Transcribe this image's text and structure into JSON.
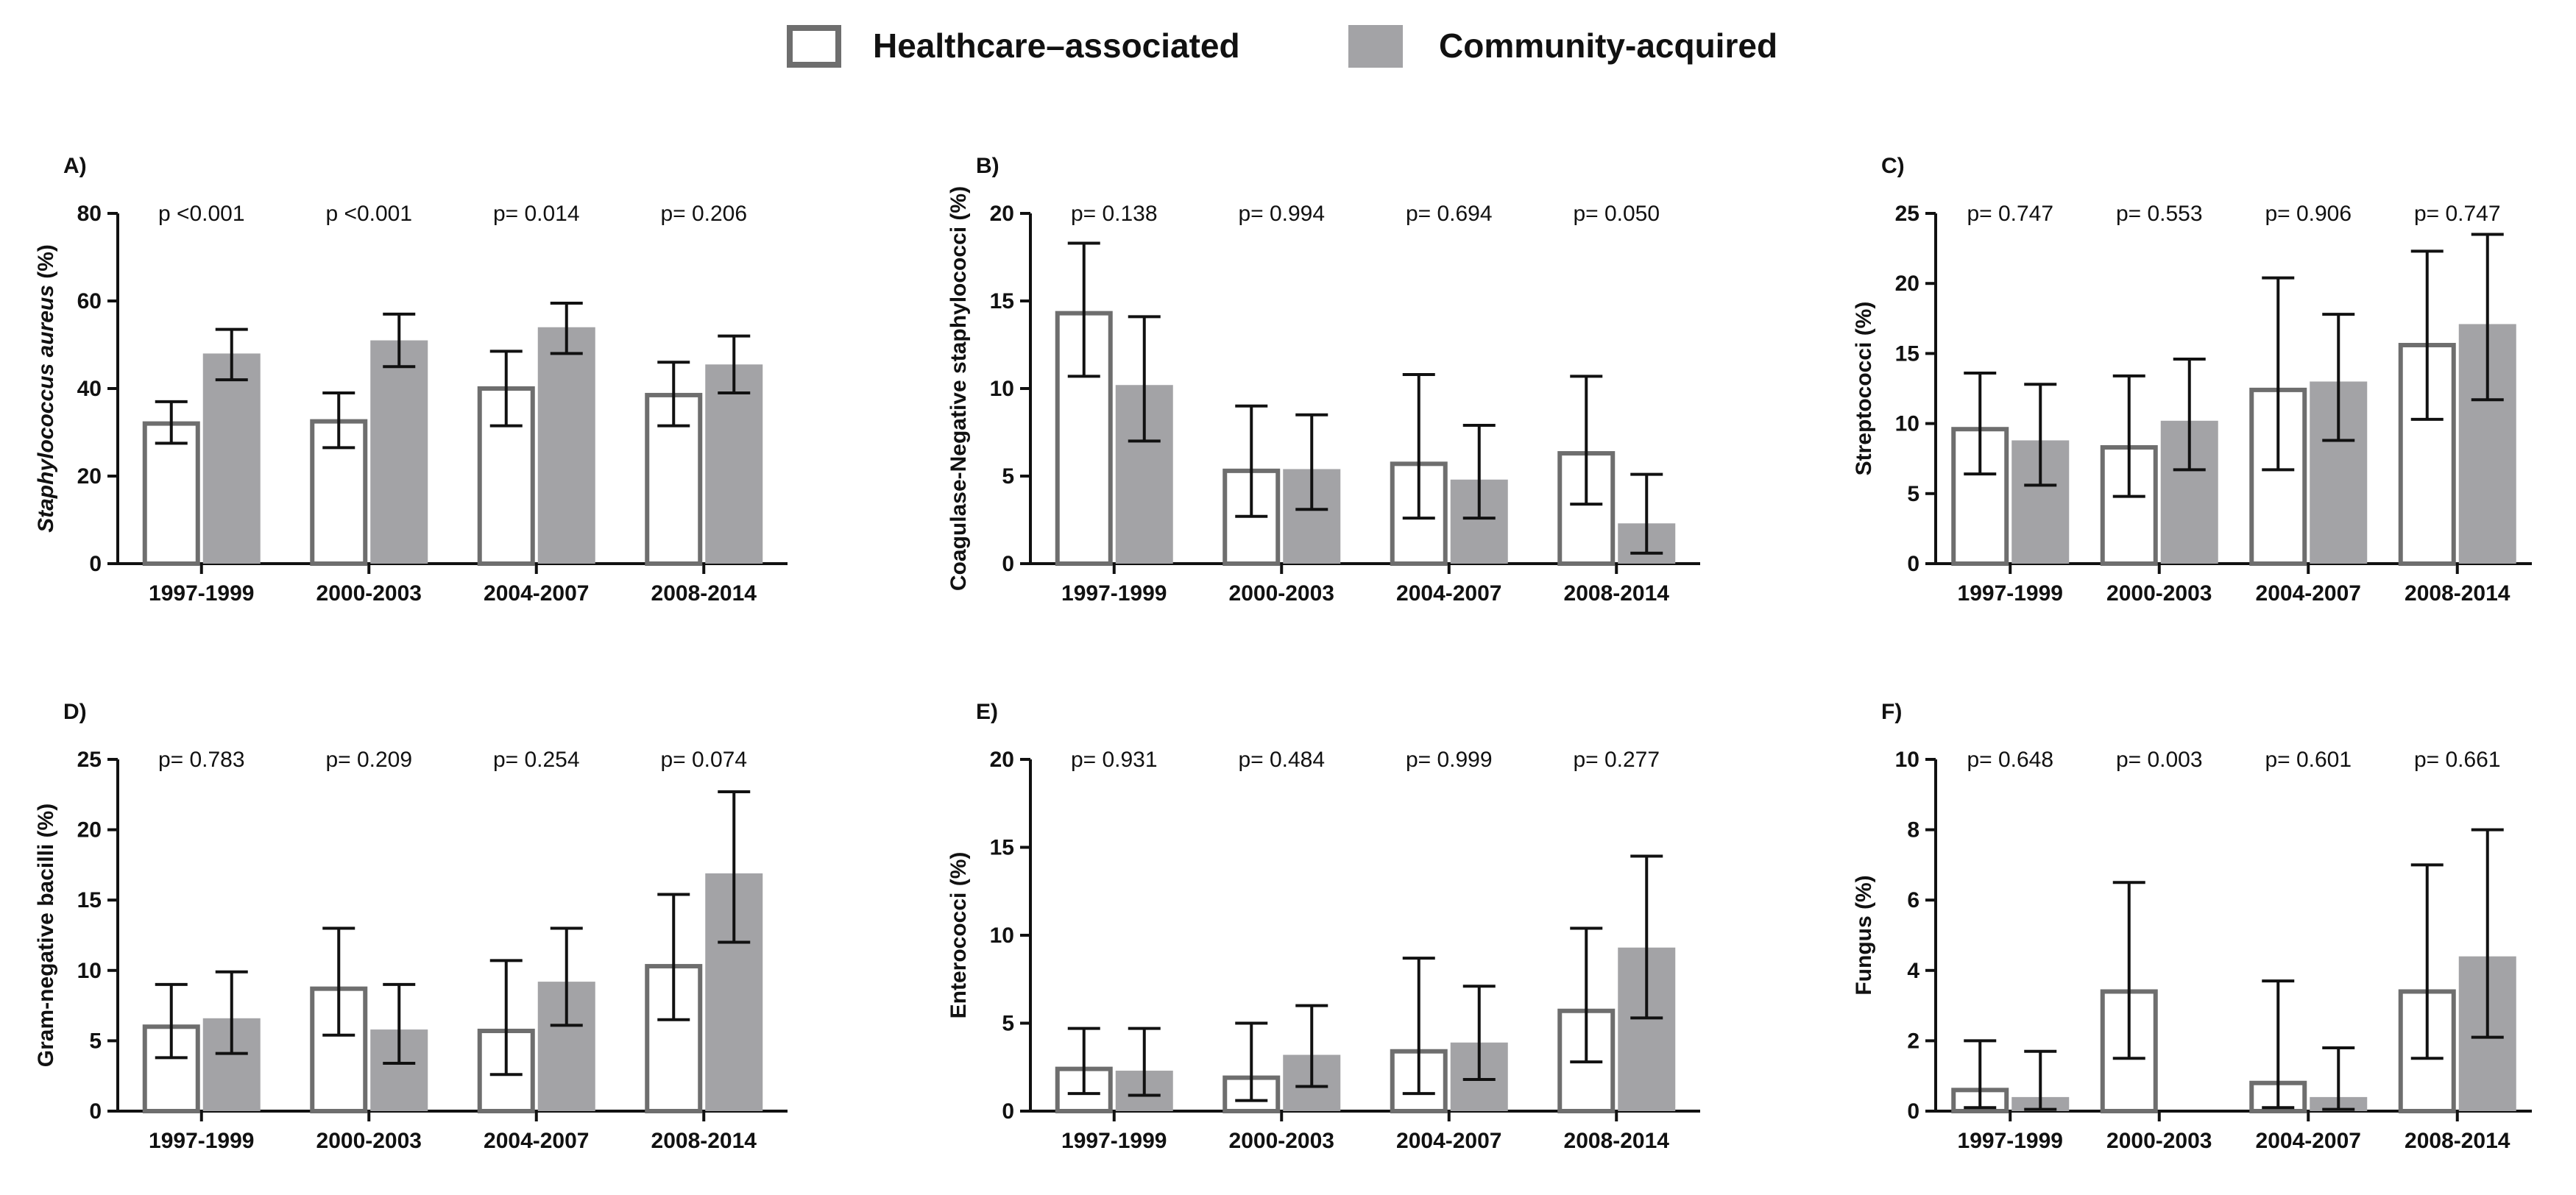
{
  "legend": {
    "series": [
      {
        "name": "Healthcare–associated",
        "style": "outline"
      },
      {
        "name": "Community-acquired",
        "style": "filled"
      }
    ]
  },
  "colors": {
    "healthcare": "#6e6e6e",
    "community": "#a3a3a6",
    "axis": "#111111",
    "text": "#111111"
  },
  "chart_data": [
    {
      "type": "bar",
      "panel": "A)",
      "ylabel": "Staphylococcus aureus (%)",
      "ylabel_italic_part": "Staphylococcus aureus",
      "ylabel_rest": " (%)",
      "ylim": [
        0,
        80
      ],
      "yticks": [
        "0",
        "20",
        "40",
        "60",
        "80"
      ],
      "categories": [
        "1997-1999",
        "2000-2003",
        "2004-2007",
        "2008-2014"
      ],
      "pvalues": [
        "p <0.001",
        "p <0.001",
        "p= 0.014",
        "p= 0.206"
      ],
      "series": [
        {
          "name": "Healthcare–associated",
          "values": [
            32,
            32.5,
            40,
            38.5
          ],
          "err_low": [
            27.5,
            26.5,
            31.5,
            31.5
          ],
          "err_high": [
            37,
            39,
            48.5,
            46
          ]
        },
        {
          "name": "Community-acquired",
          "values": [
            48,
            51,
            54,
            45.5
          ],
          "err_low": [
            42,
            45,
            48,
            39
          ],
          "err_high": [
            53.5,
            57,
            59.5,
            52
          ]
        }
      ]
    },
    {
      "type": "bar",
      "panel": "B)",
      "ylabel": "Coagulase-Negative staphylococci (%)",
      "ylim": [
        0,
        20
      ],
      "yticks": [
        "0",
        "5",
        "10",
        "15",
        "20"
      ],
      "categories": [
        "1997-1999",
        "2000-2003",
        "2004-2007",
        "2008-2014"
      ],
      "pvalues": [
        "p= 0.138",
        "p= 0.994",
        "p= 0.694",
        "p= 0.050"
      ],
      "series": [
        {
          "name": "Healthcare–associated",
          "values": [
            14.3,
            5.3,
            5.7,
            6.3
          ],
          "err_low": [
            10.7,
            2.7,
            2.6,
            3.4
          ],
          "err_high": [
            18.3,
            9,
            10.8,
            10.7
          ]
        },
        {
          "name": "Community-acquired",
          "values": [
            10.2,
            5.4,
            4.8,
            2.3
          ],
          "err_low": [
            7,
            3.1,
            2.6,
            0.6
          ],
          "err_high": [
            14.1,
            8.5,
            7.9,
            5.1
          ]
        }
      ]
    },
    {
      "type": "bar",
      "panel": "C)",
      "ylabel": "Streptococci (%)",
      "ylim": [
        0,
        25
      ],
      "yticks": [
        "0",
        "5",
        "10",
        "15",
        "20",
        "25"
      ],
      "categories": [
        "1997-1999",
        "2000-2003",
        "2004-2007",
        "2008-2014"
      ],
      "pvalues": [
        "p= 0.747",
        "p= 0.553",
        "p= 0.906",
        "p= 0.747"
      ],
      "series": [
        {
          "name": "Healthcare–associated",
          "values": [
            9.6,
            8.3,
            12.4,
            15.6
          ],
          "err_low": [
            6.4,
            4.8,
            6.7,
            10.3
          ],
          "err_high": [
            13.6,
            13.4,
            20.4,
            22.3
          ]
        },
        {
          "name": "Community-acquired",
          "values": [
            8.8,
            10.2,
            13,
            17.1
          ],
          "err_low": [
            5.6,
            6.7,
            8.8,
            11.7
          ],
          "err_high": [
            12.8,
            14.6,
            17.8,
            23.5
          ]
        }
      ]
    },
    {
      "type": "bar",
      "panel": "D)",
      "ylabel": "Gram-negative bacilli (%)",
      "ylim": [
        0,
        25
      ],
      "yticks": [
        "0",
        "5",
        "10",
        "15",
        "20",
        "25"
      ],
      "categories": [
        "1997-1999",
        "2000-2003",
        "2004-2007",
        "2008-2014"
      ],
      "pvalues": [
        "p= 0.783",
        "p= 0.209",
        "p= 0.254",
        "p= 0.074"
      ],
      "series": [
        {
          "name": "Healthcare–associated",
          "values": [
            6,
            8.7,
            5.7,
            10.3
          ],
          "err_low": [
            3.8,
            5.4,
            2.6,
            6.5
          ],
          "err_high": [
            9,
            13,
            10.7,
            15.4
          ]
        },
        {
          "name": "Community-acquired",
          "values": [
            6.6,
            5.8,
            9.2,
            16.9
          ],
          "err_low": [
            4.1,
            3.4,
            6.1,
            12
          ],
          "err_high": [
            9.9,
            9,
            13,
            22.7
          ]
        }
      ]
    },
    {
      "type": "bar",
      "panel": "E)",
      "ylabel": "Enterococci (%)",
      "ylim": [
        0,
        20
      ],
      "yticks": [
        "0",
        "5",
        "10",
        "15",
        "20"
      ],
      "categories": [
        "1997-1999",
        "2000-2003",
        "2004-2007",
        "2008-2014"
      ],
      "pvalues": [
        "p= 0.931",
        "p= 0.484",
        "p= 0.999",
        "p= 0.277"
      ],
      "series": [
        {
          "name": "Healthcare–associated",
          "values": [
            2.4,
            1.9,
            3.4,
            5.7
          ],
          "err_low": [
            1,
            0.6,
            1,
            2.8
          ],
          "err_high": [
            4.7,
            5,
            8.7,
            10.4
          ]
        },
        {
          "name": "Community-acquired",
          "values": [
            2.3,
            3.2,
            3.9,
            9.3
          ],
          "err_low": [
            0.9,
            1.4,
            1.8,
            5.3
          ],
          "err_high": [
            4.7,
            6,
            7.1,
            14.5
          ]
        }
      ]
    },
    {
      "type": "bar",
      "panel": "F)",
      "ylabel": "Fungus (%)",
      "ylim": [
        0,
        10
      ],
      "yticks": [
        "0",
        "2",
        "4",
        "6",
        "8",
        "10"
      ],
      "categories": [
        "1997-1999",
        "2000-2003",
        "2004-2007",
        "2008-2014"
      ],
      "pvalues": [
        "p= 0.648",
        "p= 0.003",
        "p= 0.601",
        "p= 0.661"
      ],
      "series": [
        {
          "name": "Healthcare–associated",
          "values": [
            0.6,
            3.4,
            0.8,
            3.4
          ],
          "err_low": [
            0.1,
            1.5,
            0.1,
            1.5
          ],
          "err_high": [
            2,
            6.5,
            3.7,
            7
          ]
        },
        {
          "name": "Community-acquired",
          "values": [
            0.4,
            0,
            0.4,
            4.4
          ],
          "err_low": [
            0.05,
            0,
            0.05,
            2.1
          ],
          "err_high": [
            1.7,
            0,
            1.8,
            8
          ]
        }
      ]
    }
  ]
}
